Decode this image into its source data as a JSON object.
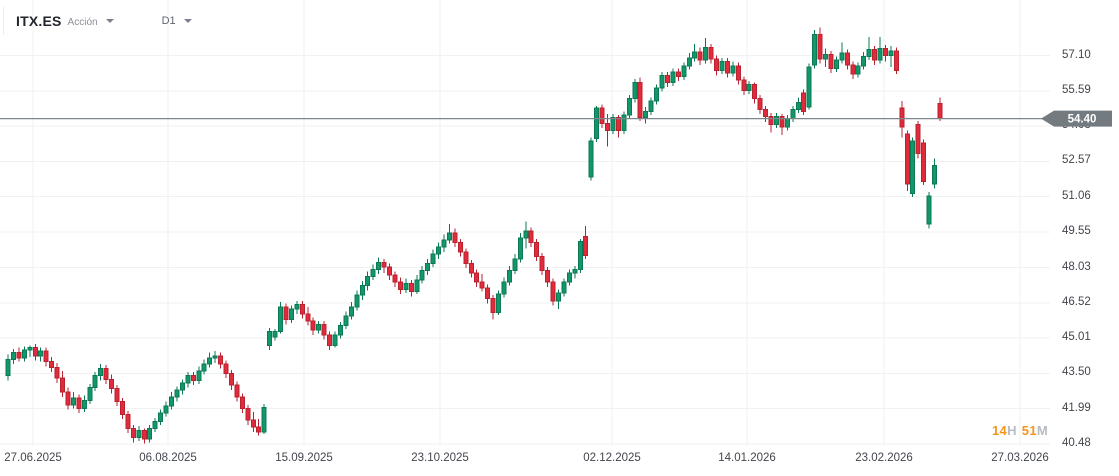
{
  "header": {
    "symbol": "ITX.ES",
    "instrument_type": "Acción",
    "timeframe": "D1"
  },
  "countdown": {
    "hours": "14",
    "hours_unit": "H",
    "minutes": "51",
    "minutes_unit": "M"
  },
  "last_price_badge": "54.40",
  "colors": {
    "up": "#12966a",
    "up_border": "#0b7a54",
    "down": "#df2b3b",
    "down_border": "#ba222f",
    "price_line": "#7d858a",
    "badge_bg": "#737b80",
    "badge_text": "#ffffff",
    "grid": "#f0f1f3",
    "axis_text": "#42464d",
    "countdown_number": "#f7941d",
    "countdown_unit": "#b7bbc2"
  },
  "chart_data": {
    "type": "candlestick",
    "symbol": "ITX.ES",
    "instrument_type": "Acción",
    "timeframe": "D1",
    "grid": true,
    "legend_position": "none",
    "x_tick_labels": [
      "27.06.2025",
      "06.08.2025",
      "15.09.2025",
      "23.10.2025",
      "02.12.2025",
      "14.01.2026",
      "23.02.2026",
      "27.03.2026"
    ],
    "y_tick_values": [
      57.1,
      55.59,
      54.08,
      52.57,
      51.06,
      49.55,
      48.03,
      46.52,
      45.01,
      43.5,
      41.99,
      40.48
    ],
    "visible_price_range": [
      40.1,
      58.6
    ],
    "last_price": 54.4,
    "session_close_countdown": "14H 51M",
    "candles": [
      [
        43.4,
        44.3,
        43.2,
        44.1
      ],
      [
        44.1,
        44.55,
        43.9,
        44.4
      ],
      [
        44.4,
        44.6,
        44.0,
        44.15
      ],
      [
        44.15,
        44.65,
        44.0,
        44.5
      ],
      [
        44.5,
        44.7,
        44.2,
        44.6
      ],
      [
        44.6,
        44.75,
        44.05,
        44.25
      ],
      [
        44.25,
        44.6,
        44.0,
        44.45
      ],
      [
        44.45,
        44.6,
        43.8,
        44.0
      ],
      [
        44.0,
        44.2,
        43.55,
        43.75
      ],
      [
        43.75,
        43.95,
        43.1,
        43.3
      ],
      [
        43.3,
        43.6,
        42.5,
        42.7
      ],
      [
        42.7,
        42.9,
        41.95,
        42.15
      ],
      [
        42.15,
        42.7,
        42.0,
        42.45
      ],
      [
        42.45,
        42.6,
        41.8,
        42.0
      ],
      [
        42.0,
        42.55,
        41.85,
        42.35
      ],
      [
        42.35,
        43.05,
        42.2,
        42.9
      ],
      [
        42.9,
        43.55,
        42.75,
        43.4
      ],
      [
        43.4,
        43.9,
        43.2,
        43.7
      ],
      [
        43.7,
        43.85,
        43.05,
        43.25
      ],
      [
        43.25,
        43.45,
        42.65,
        42.85
      ],
      [
        42.85,
        43.0,
        42.1,
        42.3
      ],
      [
        42.3,
        42.45,
        41.55,
        41.75
      ],
      [
        41.75,
        41.9,
        40.95,
        41.15
      ],
      [
        41.15,
        41.3,
        40.55,
        40.75
      ],
      [
        40.75,
        41.25,
        40.6,
        41.05
      ],
      [
        41.05,
        41.15,
        40.5,
        40.7
      ],
      [
        40.7,
        41.3,
        40.55,
        41.15
      ],
      [
        41.15,
        41.6,
        41.0,
        41.45
      ],
      [
        41.45,
        41.95,
        41.3,
        41.8
      ],
      [
        41.8,
        42.3,
        41.65,
        42.1
      ],
      [
        42.1,
        42.7,
        41.95,
        42.5
      ],
      [
        42.5,
        42.95,
        42.3,
        42.8
      ],
      [
        42.8,
        43.25,
        42.6,
        43.1
      ],
      [
        43.1,
        43.55,
        42.9,
        43.4
      ],
      [
        43.4,
        43.55,
        43.0,
        43.2
      ],
      [
        43.2,
        43.8,
        43.05,
        43.6
      ],
      [
        43.6,
        44.1,
        43.45,
        43.9
      ],
      [
        43.9,
        44.4,
        43.75,
        44.15
      ],
      [
        44.15,
        44.45,
        43.95,
        44.25
      ],
      [
        44.25,
        44.4,
        43.7,
        43.9
      ],
      [
        43.9,
        44.05,
        43.3,
        43.5
      ],
      [
        43.5,
        43.65,
        42.8,
        43.0
      ],
      [
        43.0,
        43.15,
        42.3,
        42.5
      ],
      [
        42.5,
        42.65,
        41.8,
        42.0
      ],
      [
        42.0,
        42.15,
        41.3,
        41.5
      ],
      [
        41.5,
        41.85,
        41.0,
        41.2
      ],
      [
        41.2,
        41.55,
        40.85,
        41.0
      ],
      [
        41.0,
        42.2,
        40.9,
        42.05
      ],
      [
        44.7,
        45.45,
        44.5,
        45.3
      ],
      [
        45.05,
        45.4,
        44.9,
        45.3
      ],
      [
        45.3,
        46.55,
        45.2,
        46.35
      ],
      [
        46.35,
        46.5,
        45.6,
        45.8
      ],
      [
        45.8,
        46.4,
        45.65,
        46.25
      ],
      [
        46.25,
        46.6,
        46.05,
        46.45
      ],
      [
        46.45,
        46.6,
        45.85,
        46.05
      ],
      [
        46.05,
        46.35,
        45.55,
        45.75
      ],
      [
        45.75,
        45.9,
        45.15,
        45.35
      ],
      [
        45.35,
        45.75,
        45.2,
        45.6
      ],
      [
        45.6,
        45.75,
        44.95,
        45.15
      ],
      [
        45.15,
        45.3,
        44.5,
        44.7
      ],
      [
        44.7,
        45.3,
        44.6,
        45.15
      ],
      [
        45.15,
        45.7,
        45.0,
        45.55
      ],
      [
        45.55,
        46.15,
        45.4,
        45.95
      ],
      [
        45.95,
        46.55,
        45.8,
        46.35
      ],
      [
        46.35,
        47.05,
        46.2,
        46.85
      ],
      [
        46.85,
        47.45,
        46.65,
        47.25
      ],
      [
        47.25,
        47.85,
        47.05,
        47.65
      ],
      [
        47.65,
        48.15,
        47.5,
        47.95
      ],
      [
        47.95,
        48.45,
        47.75,
        48.25
      ],
      [
        48.25,
        48.4,
        47.8,
        48.05
      ],
      [
        48.05,
        48.2,
        47.5,
        47.7
      ],
      [
        47.7,
        47.85,
        47.2,
        47.4
      ],
      [
        47.4,
        47.6,
        46.9,
        47.1
      ],
      [
        47.1,
        47.55,
        46.95,
        47.35
      ],
      [
        47.35,
        47.5,
        46.8,
        47.0
      ],
      [
        47.0,
        47.7,
        46.9,
        47.5
      ],
      [
        47.5,
        48.1,
        47.35,
        47.9
      ],
      [
        47.9,
        48.4,
        47.7,
        48.2
      ],
      [
        48.2,
        48.8,
        48.05,
        48.6
      ],
      [
        48.6,
        49.1,
        48.4,
        48.9
      ],
      [
        48.9,
        49.45,
        48.7,
        49.2
      ],
      [
        49.2,
        49.9,
        49.05,
        49.5
      ],
      [
        49.5,
        49.7,
        48.9,
        49.1
      ],
      [
        49.1,
        49.25,
        48.5,
        48.7
      ],
      [
        48.7,
        48.85,
        48.0,
        48.2
      ],
      [
        48.2,
        48.35,
        47.6,
        47.8
      ],
      [
        47.8,
        47.95,
        47.2,
        47.4
      ],
      [
        47.4,
        47.75,
        47.0,
        47.15
      ],
      [
        47.15,
        47.3,
        46.5,
        46.7
      ],
      [
        46.7,
        46.85,
        45.8,
        46.1
      ],
      [
        46.1,
        47.05,
        46.0,
        46.9
      ],
      [
        46.9,
        47.6,
        46.75,
        47.4
      ],
      [
        47.4,
        48.1,
        47.25,
        47.9
      ],
      [
        47.9,
        48.6,
        47.75,
        48.4
      ],
      [
        48.4,
        49.5,
        48.25,
        49.3
      ],
      [
        49.3,
        50.0,
        48.85,
        49.6
      ],
      [
        49.6,
        49.75,
        48.9,
        49.1
      ],
      [
        49.1,
        49.25,
        48.3,
        48.5
      ],
      [
        48.5,
        48.65,
        47.7,
        47.9
      ],
      [
        47.9,
        48.05,
        47.2,
        47.4
      ],
      [
        47.4,
        47.55,
        46.4,
        46.6
      ],
      [
        46.6,
        47.1,
        46.25,
        46.95
      ],
      [
        46.95,
        47.55,
        46.8,
        47.4
      ],
      [
        47.4,
        47.95,
        47.25,
        47.8
      ],
      [
        47.8,
        48.1,
        47.55,
        47.95
      ],
      [
        47.95,
        49.25,
        47.8,
        49.15
      ],
      [
        49.35,
        49.8,
        48.4,
        48.55
      ],
      [
        51.9,
        53.6,
        51.75,
        53.45
      ],
      [
        53.55,
        54.95,
        53.4,
        54.85
      ],
      [
        54.85,
        55.0,
        54.0,
        54.2
      ],
      [
        54.2,
        54.6,
        53.2,
        53.9
      ],
      [
        53.9,
        54.6,
        53.75,
        54.45
      ],
      [
        54.45,
        54.55,
        53.6,
        53.9
      ],
      [
        53.9,
        54.7,
        53.75,
        54.55
      ],
      [
        54.55,
        55.4,
        54.4,
        55.25
      ],
      [
        55.25,
        56.1,
        55.1,
        55.95
      ],
      [
        55.95,
        56.15,
        54.3,
        54.45
      ],
      [
        54.45,
        54.9,
        54.2,
        54.7
      ],
      [
        54.7,
        55.3,
        54.55,
        55.15
      ],
      [
        55.15,
        55.85,
        55.0,
        55.7
      ],
      [
        55.7,
        56.4,
        55.55,
        56.25
      ],
      [
        56.25,
        56.4,
        55.75,
        55.95
      ],
      [
        55.95,
        56.55,
        55.8,
        56.4
      ],
      [
        56.4,
        56.55,
        56.0,
        56.2
      ],
      [
        56.2,
        56.8,
        56.05,
        56.65
      ],
      [
        56.65,
        57.2,
        56.5,
        57.0
      ],
      [
        57.0,
        57.6,
        56.85,
        57.25
      ],
      [
        57.25,
        57.45,
        56.7,
        56.9
      ],
      [
        56.9,
        57.85,
        56.75,
        57.45
      ],
      [
        57.45,
        57.6,
        56.75,
        56.95
      ],
      [
        56.95,
        57.1,
        56.25,
        56.45
      ],
      [
        56.45,
        57.0,
        56.3,
        56.85
      ],
      [
        56.85,
        57.0,
        56.15,
        56.35
      ],
      [
        56.35,
        56.85,
        56.2,
        56.65
      ],
      [
        56.65,
        56.8,
        55.85,
        56.05
      ],
      [
        56.05,
        56.2,
        55.4,
        55.6
      ],
      [
        55.6,
        56.0,
        55.45,
        55.85
      ],
      [
        55.85,
        55.95,
        55.05,
        55.25
      ],
      [
        55.25,
        55.4,
        54.6,
        54.8
      ],
      [
        54.8,
        54.95,
        54.25,
        54.5
      ],
      [
        54.5,
        54.65,
        53.8,
        54.15
      ],
      [
        54.15,
        54.65,
        54.0,
        54.5
      ],
      [
        54.5,
        54.6,
        53.7,
        54.05
      ],
      [
        54.05,
        54.55,
        53.9,
        54.4
      ],
      [
        54.4,
        54.95,
        54.25,
        54.8
      ],
      [
        54.8,
        55.3,
        54.65,
        55.1
      ],
      [
        55.5,
        55.65,
        54.55,
        54.7
      ],
      [
        54.9,
        56.75,
        54.8,
        56.6
      ],
      [
        56.7,
        58.2,
        56.55,
        58.0
      ],
      [
        58.0,
        58.3,
        56.75,
        56.95
      ],
      [
        56.95,
        57.4,
        56.6,
        57.15
      ],
      [
        57.15,
        57.3,
        56.35,
        56.55
      ],
      [
        56.55,
        57.05,
        56.4,
        56.9
      ],
      [
        56.9,
        57.65,
        56.75,
        57.2
      ],
      [
        57.2,
        57.35,
        56.5,
        56.7
      ],
      [
        56.7,
        56.85,
        56.1,
        56.3
      ],
      [
        56.3,
        56.8,
        56.15,
        56.65
      ],
      [
        56.65,
        57.25,
        56.5,
        57.05
      ],
      [
        57.05,
        57.9,
        56.9,
        57.35
      ],
      [
        57.35,
        57.5,
        56.7,
        56.9
      ],
      [
        56.9,
        57.9,
        56.75,
        57.4
      ],
      [
        57.4,
        57.55,
        56.85,
        57.1
      ],
      [
        57.1,
        57.5,
        56.6,
        57.3
      ],
      [
        57.3,
        57.45,
        56.3,
        56.45
      ],
      [
        54.85,
        55.15,
        53.6,
        54.05
      ],
      [
        53.75,
        53.9,
        51.3,
        51.6
      ],
      [
        51.2,
        53.6,
        51.05,
        53.45
      ],
      [
        54.15,
        54.3,
        52.7,
        52.9
      ],
      [
        53.35,
        53.5,
        51.55,
        51.7
      ],
      [
        49.9,
        51.25,
        49.7,
        51.1
      ],
      [
        51.6,
        52.7,
        51.4,
        52.4
      ],
      [
        55.05,
        55.3,
        54.3,
        54.4
      ]
    ]
  }
}
